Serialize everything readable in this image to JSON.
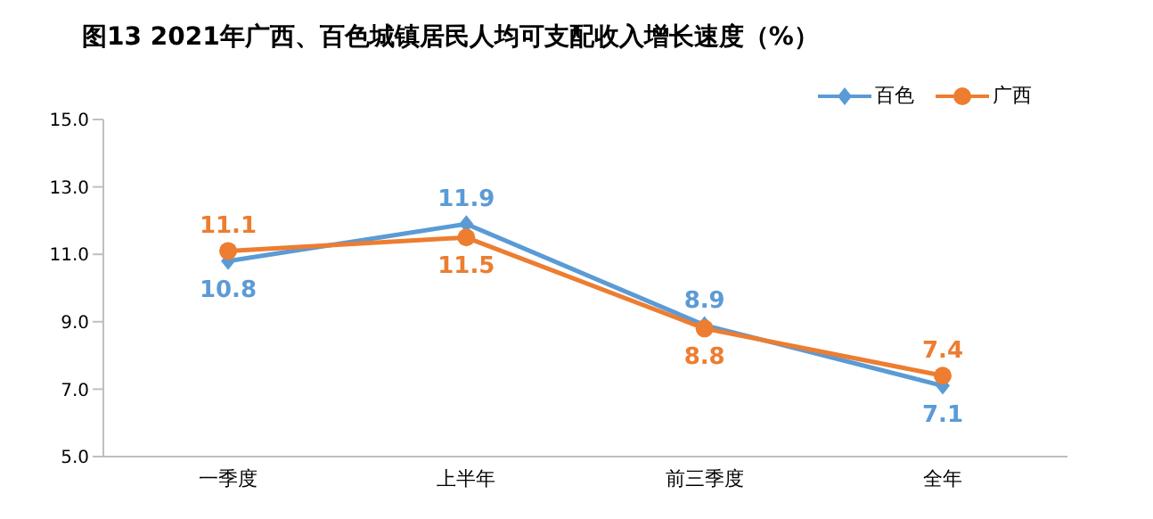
{
  "chart_data": {
    "type": "line",
    "title": "图13  2021年广西、百色城镇居民人均可支配收入增长速度（%）",
    "categories": [
      "一季度",
      "上半年",
      "前三季度",
      "全年"
    ],
    "series": [
      {
        "name": "百色",
        "color": "#5b9bd5",
        "marker": "diamond",
        "values": [
          10.8,
          11.9,
          8.9,
          7.1
        ]
      },
      {
        "name": "广西",
        "color": "#ed7d31",
        "marker": "circle",
        "values": [
          11.1,
          11.5,
          8.8,
          7.4
        ]
      }
    ],
    "ylim": [
      5,
      15
    ],
    "yticks": [
      {
        "value": 5,
        "label": "5.0"
      },
      {
        "value": 7,
        "label": "7.0"
      },
      {
        "value": 9,
        "label": "9.0"
      },
      {
        "value": 11,
        "label": "11.0"
      },
      {
        "value": 13,
        "label": "13.0"
      },
      {
        "value": 15,
        "label": "15.0"
      }
    ],
    "grid": false,
    "legend": "top right",
    "data_labels": true,
    "line_style": "solid"
  }
}
